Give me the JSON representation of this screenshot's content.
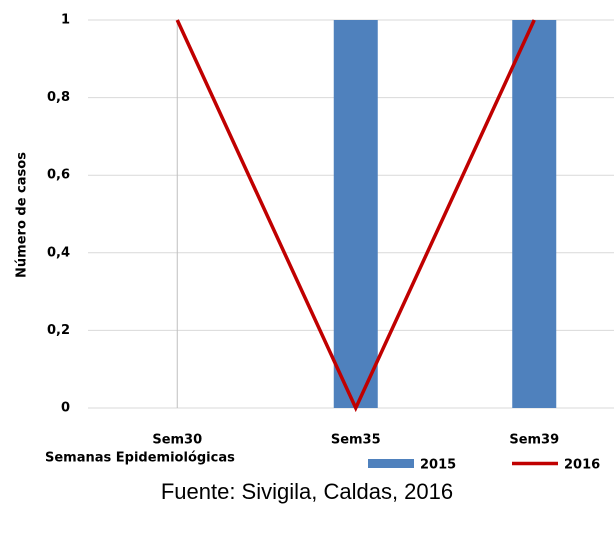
{
  "chart_data": {
    "type": "bar-line",
    "categories": [
      "Sem30",
      "Sem35",
      "Sem39"
    ],
    "series": [
      {
        "name": "2015",
        "type": "bar",
        "color": "#4f81bd",
        "values": [
          0,
          1,
          1
        ]
      },
      {
        "name": "2016",
        "type": "line",
        "color": "#c00000",
        "values": [
          1,
          0,
          1
        ]
      }
    ],
    "ylim": [
      0,
      1
    ],
    "yticks": [
      0,
      {
        "value": 0.2,
        "label": "0,2"
      },
      {
        "value": 0.4,
        "label": "0,4"
      },
      {
        "value": 0.6,
        "label": "0,6"
      },
      {
        "value": 0.8,
        "label": "0,8"
      },
      1
    ],
    "grid": true,
    "ylabel": "Número de casos",
    "xlabel": "Semanas Epidemiológicas",
    "source": "Fuente: Sivigila, Caldas, 2016",
    "legend": "bottom"
  }
}
